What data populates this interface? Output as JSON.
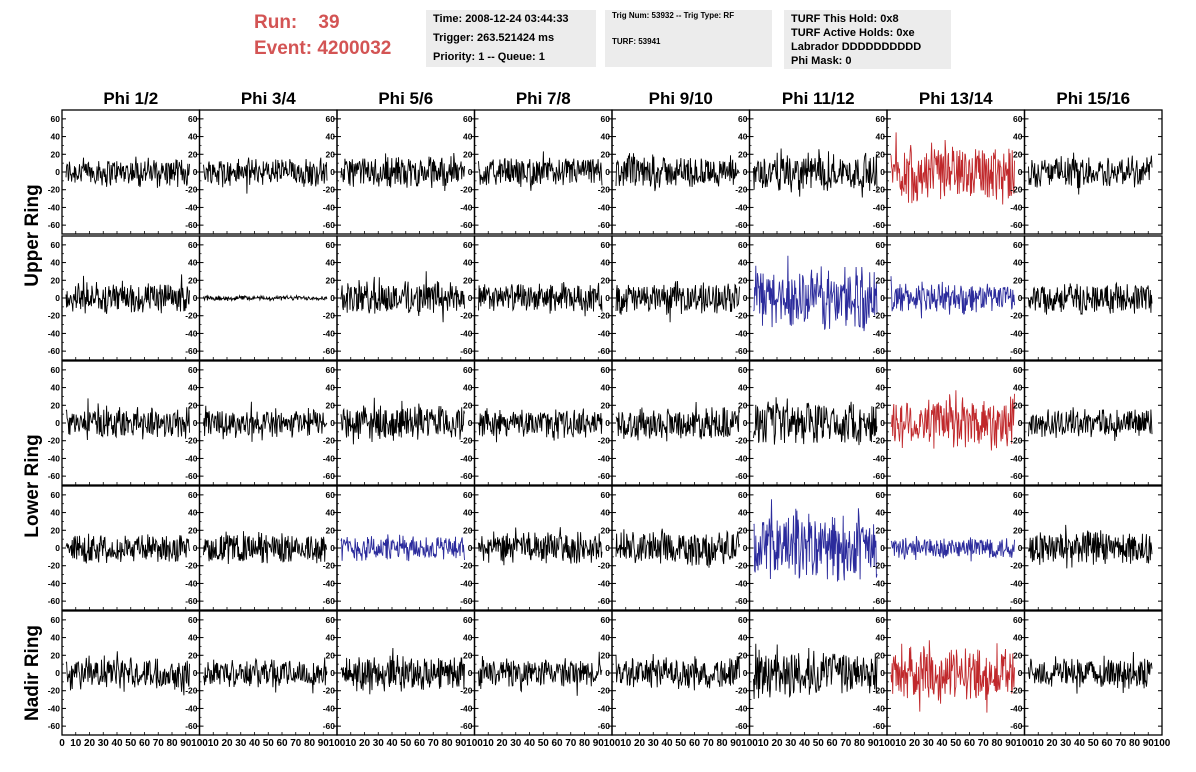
{
  "header": {
    "run_label": "Run:",
    "run_value": "39",
    "event_label": "Event:",
    "event_value": "4200032"
  },
  "info_box_1": {
    "time": "Time: 2008-12-24 03:44:33",
    "trigger": "Trigger: 263.521424 ms",
    "priority": "Priority: 1 -- Queue: 1"
  },
  "info_box_2": {
    "trig": "Trig Num: 53932 -- Trig Type: RF",
    "turf": "TURF: 53941"
  },
  "info_box_3": {
    "hold": "TURF This Hold: 0x8",
    "active": "TURF Active Holds: 0xe",
    "labrador": "Labrador DDDDDDDDDD",
    "phimask": "Phi Mask: 0"
  },
  "colors": {
    "header_red": "#d35454",
    "trace_black": "#000000",
    "trace_red": "#c0282b",
    "trace_blue": "#2b2b9c",
    "info_bg": "#ececec"
  },
  "chart_data": {
    "type": "line",
    "columns": [
      "Phi 1/2",
      "Phi 3/4",
      "Phi 5/6",
      "Phi 7/8",
      "Phi 9/10",
      "Phi 11/12",
      "Phi 13/14",
      "Phi 15/16"
    ],
    "row_labels": [
      "Upper Ring",
      "Lower Ring",
      "Nadir Ring"
    ],
    "xlim": [
      0,
      100
    ],
    "ylim": [
      -70,
      70
    ],
    "y_ticks": [
      -60,
      -40,
      -20,
      0,
      20,
      40,
      60
    ],
    "x_tick_labels": [
      "0",
      "10",
      "20",
      "30",
      "40",
      "50",
      "60",
      "70",
      "80",
      "90",
      "100"
    ],
    "panels": [
      [
        {
          "c": "black",
          "a": 18
        },
        {
          "c": "black",
          "a": 18
        },
        {
          "c": "black",
          "a": 20
        },
        {
          "c": "black",
          "a": 18
        },
        {
          "c": "black",
          "a": 20
        },
        {
          "c": "black",
          "a": 24
        },
        {
          "c": "red",
          "a": 38
        },
        {
          "c": "black",
          "a": 20
        }
      ],
      [
        {
          "c": "black",
          "a": 20
        },
        {
          "c": "black",
          "a": 3
        },
        {
          "c": "black",
          "a": 22
        },
        {
          "c": "black",
          "a": 18
        },
        {
          "c": "black",
          "a": 20
        },
        {
          "c": "blue",
          "a": 40
        },
        {
          "c": "blue",
          "a": 20
        },
        {
          "c": "black",
          "a": 20
        }
      ],
      [
        {
          "c": "black",
          "a": 20
        },
        {
          "c": "black",
          "a": 18
        },
        {
          "c": "black",
          "a": 22
        },
        {
          "c": "black",
          "a": 18
        },
        {
          "c": "black",
          "a": 20
        },
        {
          "c": "black",
          "a": 28
        },
        {
          "c": "red",
          "a": 34
        },
        {
          "c": "black",
          "a": 18
        }
      ],
      [
        {
          "c": "black",
          "a": 18
        },
        {
          "c": "black",
          "a": 20
        },
        {
          "c": "blue",
          "a": 16
        },
        {
          "c": "black",
          "a": 20
        },
        {
          "c": "black",
          "a": 22
        },
        {
          "c": "blue",
          "a": 40
        },
        {
          "c": "blue",
          "a": 14
        },
        {
          "c": "black",
          "a": 22
        }
      ],
      [
        {
          "c": "black",
          "a": 20
        },
        {
          "c": "black",
          "a": 18
        },
        {
          "c": "black",
          "a": 22
        },
        {
          "c": "black",
          "a": 18
        },
        {
          "c": "black",
          "a": 20
        },
        {
          "c": "black",
          "a": 30
        },
        {
          "c": "red",
          "a": 34
        },
        {
          "c": "black",
          "a": 20
        }
      ]
    ]
  }
}
